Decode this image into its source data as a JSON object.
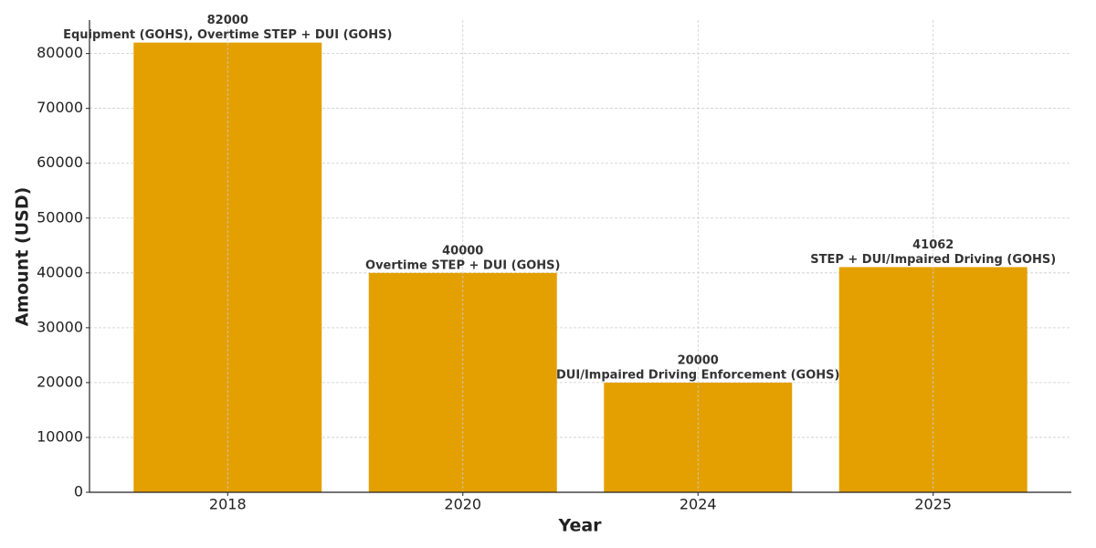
{
  "chart_data": {
    "type": "bar",
    "x_label": "Year",
    "y_label": "Amount (USD)",
    "categories": [
      "2018",
      "2020",
      "2024",
      "2025"
    ],
    "values": [
      82000,
      40000,
      20000,
      41062
    ],
    "annotations": [
      "Equipment (GOHS), Overtime STEP + DUI (GOHS)",
      "Overtime STEP + DUI (GOHS)",
      "DUI/Impaired Driving Enforcement (GOHS)",
      "STEP + DUI/Impaired Driving (GOHS)"
    ],
    "color": "#e3a000",
    "ylim": [
      0,
      86100
    ],
    "yticks": [
      0,
      10000,
      20000,
      30000,
      40000,
      50000,
      60000,
      70000,
      80000
    ],
    "grid": true
  }
}
